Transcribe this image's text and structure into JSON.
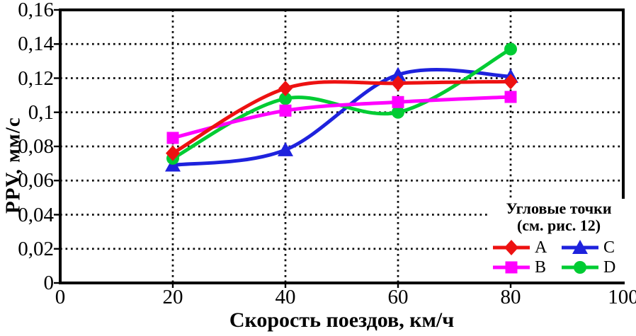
{
  "chart_data": {
    "type": "line",
    "title": "",
    "xlabel": "Скорость поездов, км/ч",
    "ylabel": "PPV, мм/с",
    "xlim": [
      0,
      100
    ],
    "ylim": [
      0,
      0.16
    ],
    "grid": "dotted",
    "x": [
      20,
      40,
      60,
      80
    ],
    "series": [
      {
        "name": "C",
        "color": "#1e22dd",
        "marker": "triangle",
        "values": [
          0.069,
          0.078,
          0.122,
          0.121
        ]
      },
      {
        "name": "D",
        "color": "#00cc33",
        "marker": "circle",
        "values": [
          0.073,
          0.108,
          0.1,
          0.137
        ]
      },
      {
        "name": "B",
        "color": "#ff00ff",
        "marker": "square",
        "values": [
          0.085,
          0.101,
          0.106,
          0.109
        ]
      },
      {
        "name": "A",
        "color": "#ed1111",
        "marker": "diamond",
        "values": [
          0.076,
          0.114,
          0.117,
          0.118
        ]
      }
    ],
    "xticks": [
      {
        "v": 0,
        "label": "0"
      },
      {
        "v": 20,
        "label": "20"
      },
      {
        "v": 40,
        "label": "40"
      },
      {
        "v": 60,
        "label": "60"
      },
      {
        "v": 80,
        "label": "80"
      },
      {
        "v": 100,
        "label": "100"
      }
    ],
    "yticks": [
      {
        "v": 0,
        "label": "0"
      },
      {
        "v": 0.02,
        "label": "0,02"
      },
      {
        "v": 0.04,
        "label": "0,04"
      },
      {
        "v": 0.06,
        "label": "0,06"
      },
      {
        "v": 0.08,
        "label": "0,08"
      },
      {
        "v": 0.1,
        "label": "0,1"
      },
      {
        "v": 0.12,
        "label": "0,12"
      },
      {
        "v": 0.14,
        "label": "0,14"
      },
      {
        "v": 0.16,
        "label": "0,16"
      }
    ],
    "legend": {
      "title": "Угловые точки",
      "subtitle": "(см. рис. 12)",
      "entries": [
        {
          "label": "A"
        },
        {
          "label": "C"
        },
        {
          "label": "B"
        },
        {
          "label": "D"
        }
      ]
    }
  }
}
